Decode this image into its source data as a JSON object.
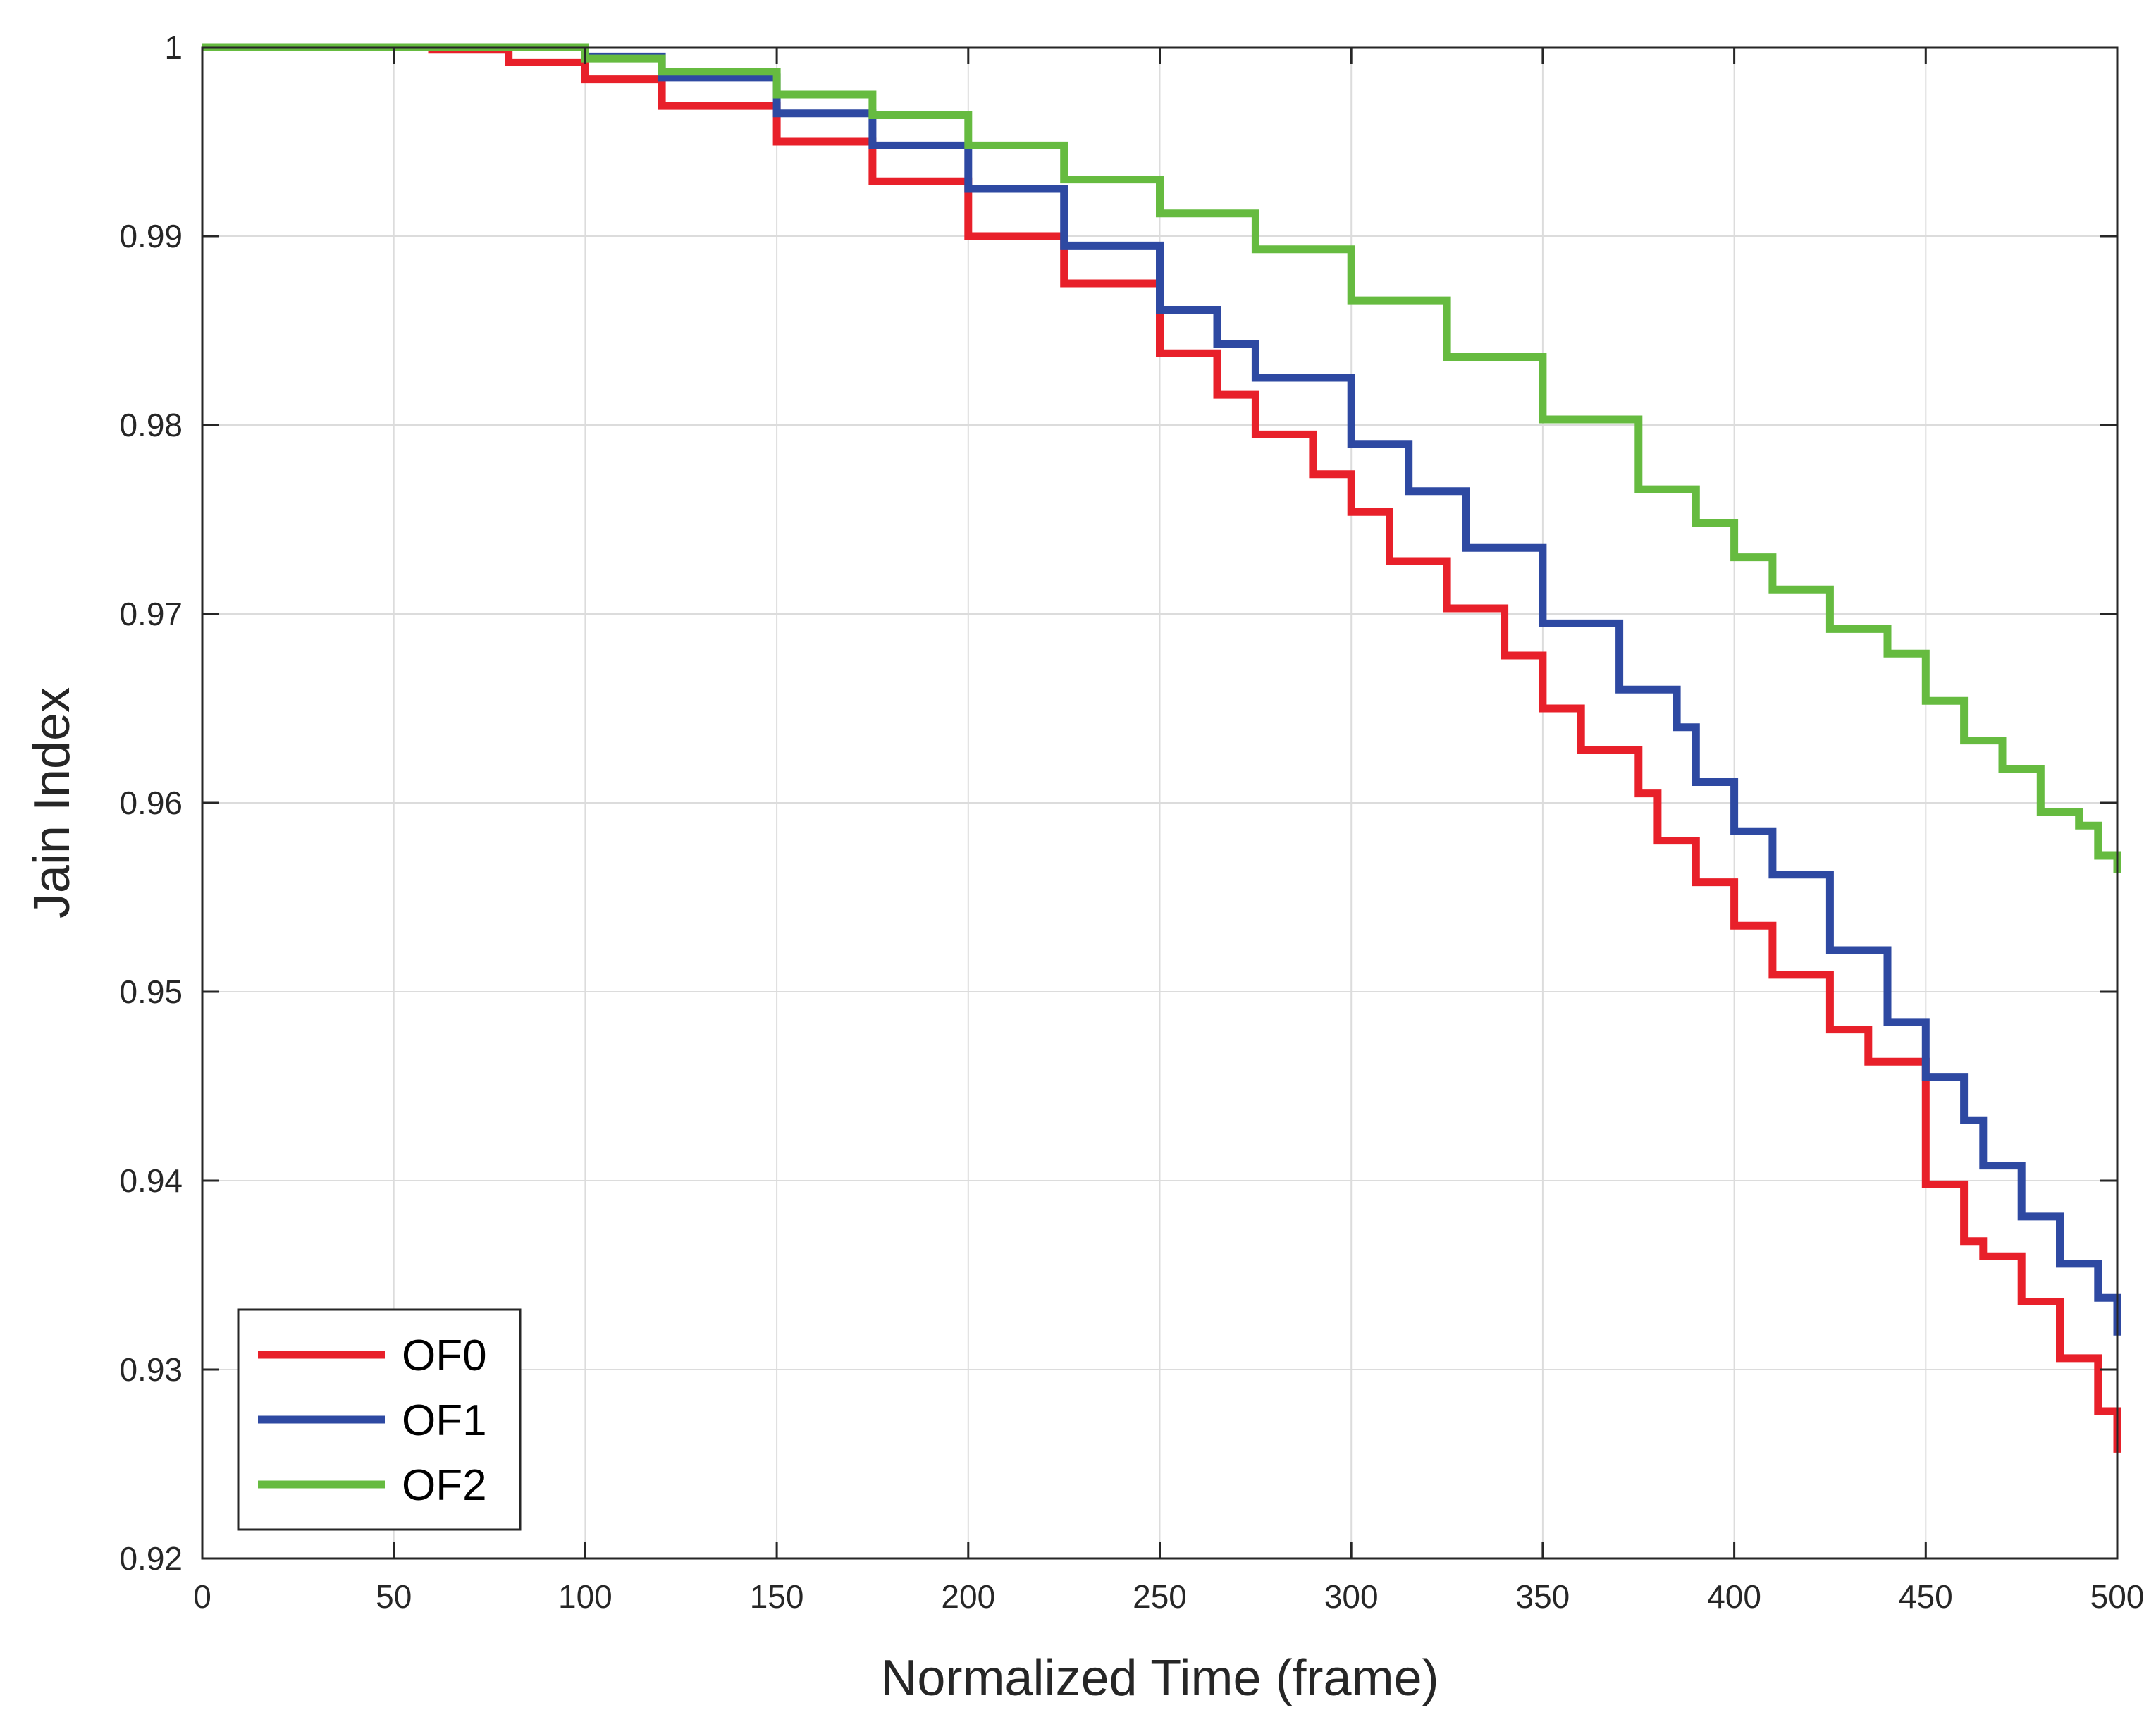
{
  "chart_data": {
    "type": "line",
    "title": "",
    "xlabel": "Normalized Time (frame)",
    "ylabel": "Jain Index",
    "xlim": [
      0,
      500
    ],
    "ylim": [
      0.92,
      1.0
    ],
    "xticks": [
      0,
      50,
      100,
      150,
      200,
      250,
      300,
      350,
      400,
      450,
      500
    ],
    "xtick_labels": [
      "0",
      "50",
      "100",
      "150",
      "200",
      "250",
      "300",
      "350",
      "400",
      "450",
      "500"
    ],
    "yticks": [
      0.92,
      0.93,
      0.94,
      0.95,
      0.96,
      0.97,
      0.98,
      0.99,
      1.0
    ],
    "ytick_labels": [
      "0.92",
      "0.93",
      "0.94",
      "0.95",
      "0.96",
      "0.97",
      "0.98",
      "0.99",
      "1"
    ],
    "grid": true,
    "legend_position": "bottom-left",
    "series": [
      {
        "name": "OF0",
        "color": "#e8202a",
        "x": [
          0,
          50,
          60,
          80,
          100,
          120,
          150,
          175,
          200,
          225,
          250,
          265,
          275,
          290,
          300,
          310,
          325,
          340,
          350,
          360,
          375,
          380,
          390,
          400,
          410,
          425,
          435,
          450,
          460,
          465,
          475,
          485,
          495,
          500
        ],
        "y": [
          1.0,
          1.0,
          0.9999,
          0.9992,
          0.9983,
          0.9969,
          0.995,
          0.9929,
          0.99,
          0.9875,
          0.9838,
          0.9816,
          0.9795,
          0.9774,
          0.9754,
          0.9728,
          0.9703,
          0.9678,
          0.965,
          0.9628,
          0.9605,
          0.958,
          0.9558,
          0.9535,
          0.9509,
          0.948,
          0.9463,
          0.9398,
          0.9368,
          0.936,
          0.9336,
          0.9306,
          0.9278,
          0.9256
        ]
      },
      {
        "name": "OF1",
        "color": "#2e49a2",
        "x": [
          0,
          80,
          100,
          120,
          150,
          175,
          200,
          225,
          250,
          265,
          275,
          300,
          315,
          330,
          350,
          370,
          385,
          390,
          400,
          410,
          425,
          440,
          450,
          460,
          465,
          475,
          485,
          495,
          500
        ],
        "y": [
          1.0,
          1.0,
          0.9995,
          0.9984,
          0.9965,
          0.9948,
          0.9925,
          0.9895,
          0.9861,
          0.9843,
          0.9825,
          0.979,
          0.9765,
          0.9735,
          0.9695,
          0.966,
          0.964,
          0.9611,
          0.9585,
          0.9562,
          0.9522,
          0.9484,
          0.9455,
          0.9432,
          0.9408,
          0.9381,
          0.9356,
          0.9338,
          0.9318
        ]
      },
      {
        "name": "OF2",
        "color": "#66bb40",
        "x": [
          0,
          80,
          100,
          120,
          150,
          175,
          200,
          225,
          250,
          275,
          300,
          325,
          350,
          375,
          390,
          400,
          410,
          425,
          440,
          450,
          460,
          470,
          480,
          490,
          495,
          500
        ],
        "y": [
          1.0,
          1.0,
          0.9994,
          0.9987,
          0.9975,
          0.9964,
          0.9948,
          0.993,
          0.9912,
          0.9893,
          0.9866,
          0.9836,
          0.9803,
          0.9766,
          0.9748,
          0.973,
          0.9713,
          0.9692,
          0.9679,
          0.9654,
          0.9633,
          0.9618,
          0.9595,
          0.9588,
          0.9572,
          0.9563
        ]
      }
    ]
  },
  "colors": {
    "axis": "#262626",
    "grid": "#dcdcdc",
    "background": "#ffffff"
  }
}
